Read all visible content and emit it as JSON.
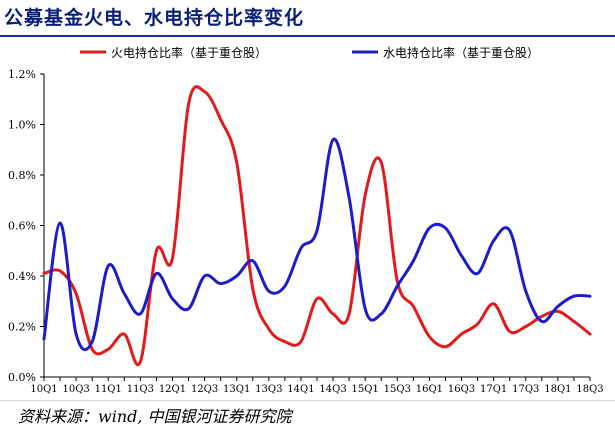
{
  "header": {
    "title": "公募基金火电、水电持仓比率变化"
  },
  "footer": {
    "source": "资料来源：wind, 中国银河证券研究院"
  },
  "chart_data": {
    "type": "line",
    "title": "公募基金火电、水电持仓比率变化",
    "xlabel": "",
    "ylabel": "",
    "ylim": [
      0,
      0.012
    ],
    "yticks": [
      0,
      0.002,
      0.004,
      0.006,
      0.008,
      0.01,
      0.012
    ],
    "ytick_labels": [
      "0.0%",
      "0.2%",
      "0.4%",
      "0.6%",
      "0.8%",
      "1.0%",
      "1.2%"
    ],
    "categories": [
      "10Q1",
      "10Q2",
      "10Q3",
      "10Q4",
      "11Q1",
      "11Q2",
      "11Q3",
      "11Q4",
      "12Q1",
      "12Q2",
      "12Q3",
      "12Q4",
      "13Q1",
      "13Q2",
      "13Q3",
      "13Q4",
      "14Q1",
      "14Q2",
      "14Q3",
      "14Q4",
      "15Q1",
      "15Q2",
      "15Q3",
      "15Q4",
      "16Q1",
      "16Q2",
      "16Q3",
      "16Q4",
      "17Q1",
      "17Q2",
      "17Q3",
      "17Q4",
      "18Q1",
      "18Q2",
      "18Q3"
    ],
    "xtick_labels": [
      "10Q1",
      "10Q3",
      "11Q1",
      "11Q3",
      "12Q1",
      "12Q3",
      "13Q1",
      "13Q3",
      "14Q1",
      "14Q3",
      "15Q1",
      "15Q3",
      "16Q1",
      "16Q3",
      "17Q1",
      "17Q3",
      "18Q1",
      "18Q3"
    ],
    "legend_position": "top",
    "grid": false,
    "series": [
      {
        "name": "火电持仓比率（基于重仓股）",
        "color": "#e31a1c",
        "values": [
          0.0041,
          0.0042,
          0.0033,
          0.0011,
          0.0011,
          0.0017,
          0.0006,
          0.005,
          0.0047,
          0.0108,
          0.0113,
          0.0102,
          0.0085,
          0.0035,
          0.0019,
          0.0014,
          0.0014,
          0.0031,
          0.0025,
          0.0025,
          0.0072,
          0.0085,
          0.0038,
          0.0028,
          0.0016,
          0.0012,
          0.0017,
          0.0021,
          0.0029,
          0.0018,
          0.002,
          0.0024,
          0.0026,
          0.0022,
          0.0017
        ]
      },
      {
        "name": "水电持仓比率（基于重仓股）",
        "color": "#1c1cc8",
        "values": [
          0.0015,
          0.0061,
          0.0017,
          0.0014,
          0.0044,
          0.0033,
          0.0025,
          0.0041,
          0.0031,
          0.0027,
          0.004,
          0.0037,
          0.004,
          0.0046,
          0.0034,
          0.0036,
          0.0051,
          0.0058,
          0.0094,
          0.0071,
          0.0027,
          0.0025,
          0.0036,
          0.0046,
          0.0059,
          0.0059,
          0.0048,
          0.0041,
          0.0054,
          0.0058,
          0.0034,
          0.0022,
          0.0028,
          0.0032,
          0.0032
        ]
      }
    ]
  }
}
